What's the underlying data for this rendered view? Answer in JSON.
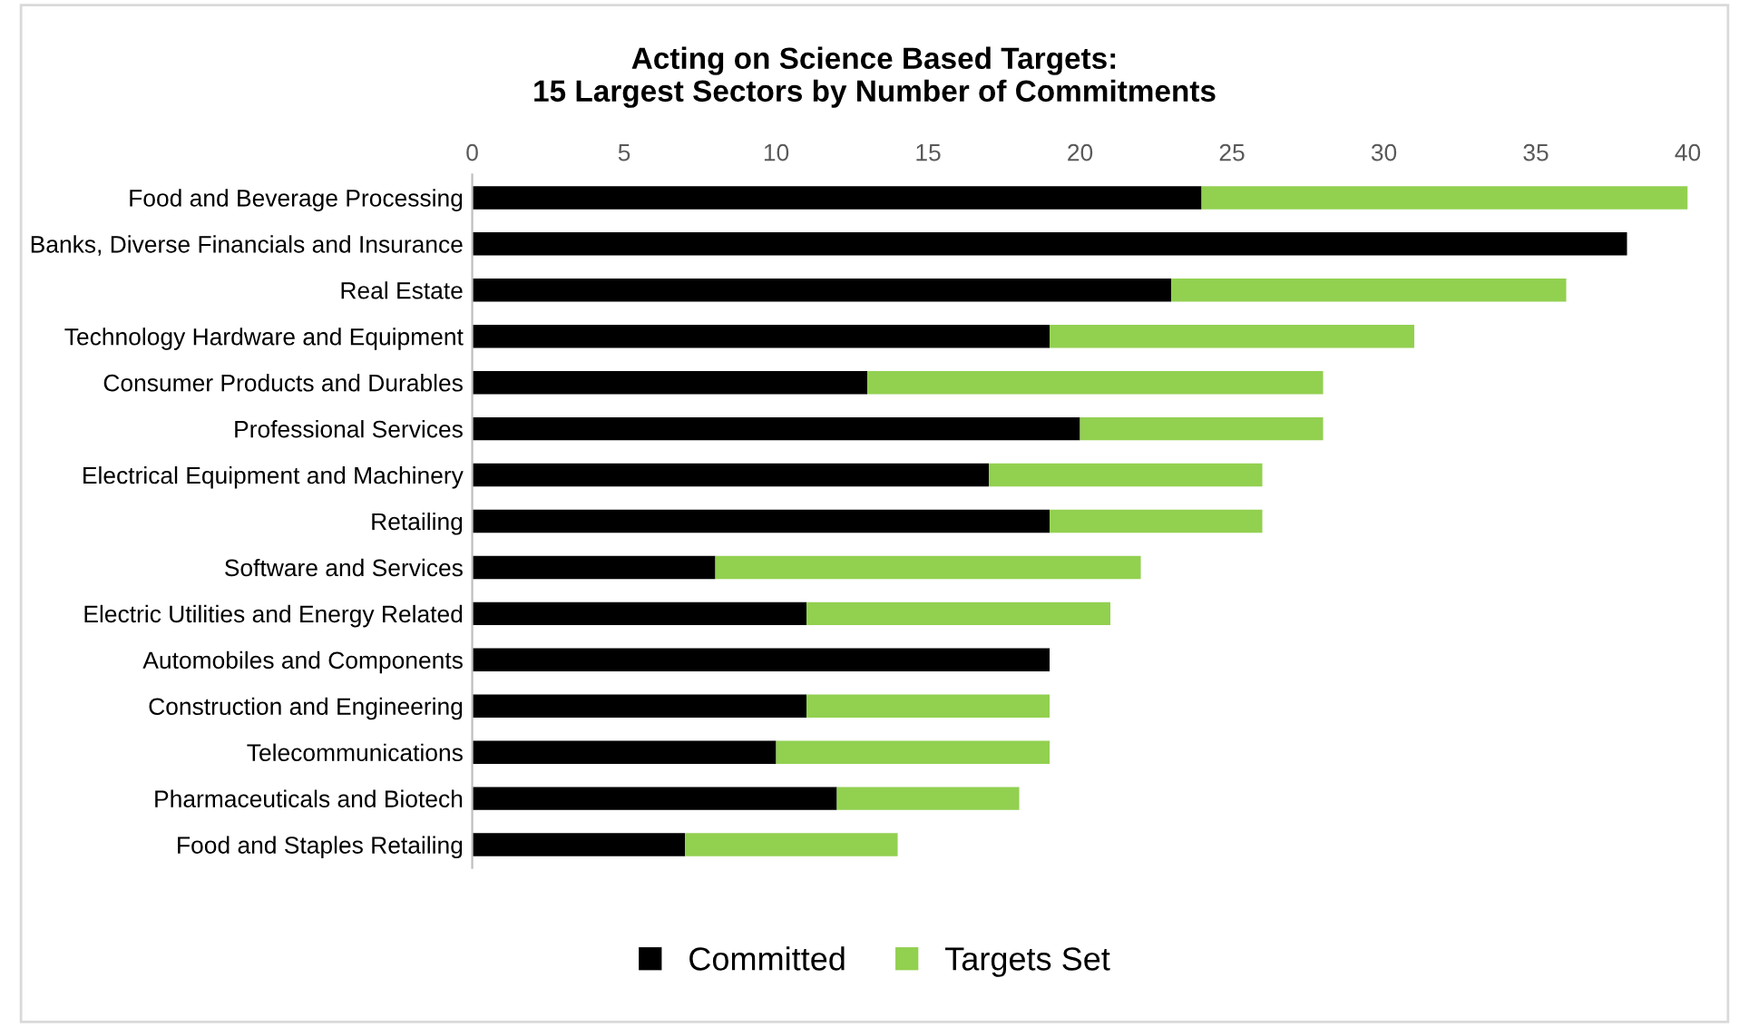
{
  "chart_data": {
    "type": "bar",
    "orientation": "horizontal",
    "stacked": true,
    "title": "Acting on Science Based Targets:\n15 Largest Sectors by Number of Commitments",
    "categories": [
      "Food and Beverage Processing",
      "Banks, Diverse Financials and Insurance",
      "Real Estate",
      "Technology Hardware and Equipment",
      "Consumer Products and Durables",
      "Professional Services",
      "Electrical Equipment and Machinery",
      "Retailing",
      "Software and Services",
      "Electric Utilities and Energy Related",
      "Automobiles and Components",
      "Construction and Engineering",
      "Telecommunications",
      "Pharmaceuticals and Biotech",
      "Food and Staples Retailing"
    ],
    "series": [
      {
        "name": "Committed",
        "color": "#000000",
        "values": [
          24,
          38,
          23,
          19,
          13,
          20,
          17,
          19,
          8,
          11,
          19,
          11,
          10,
          12,
          7
        ]
      },
      {
        "name": "Targets Set",
        "color": "#92d050",
        "values": [
          16,
          0,
          13,
          12,
          15,
          8,
          9,
          7,
          14,
          10,
          0,
          8,
          9,
          6,
          7
        ]
      }
    ],
    "xlim": [
      0,
      40
    ],
    "xticks": [
      0,
      5,
      10,
      15,
      20,
      25,
      30,
      35,
      40
    ],
    "grid": false,
    "legend": "bottom"
  }
}
